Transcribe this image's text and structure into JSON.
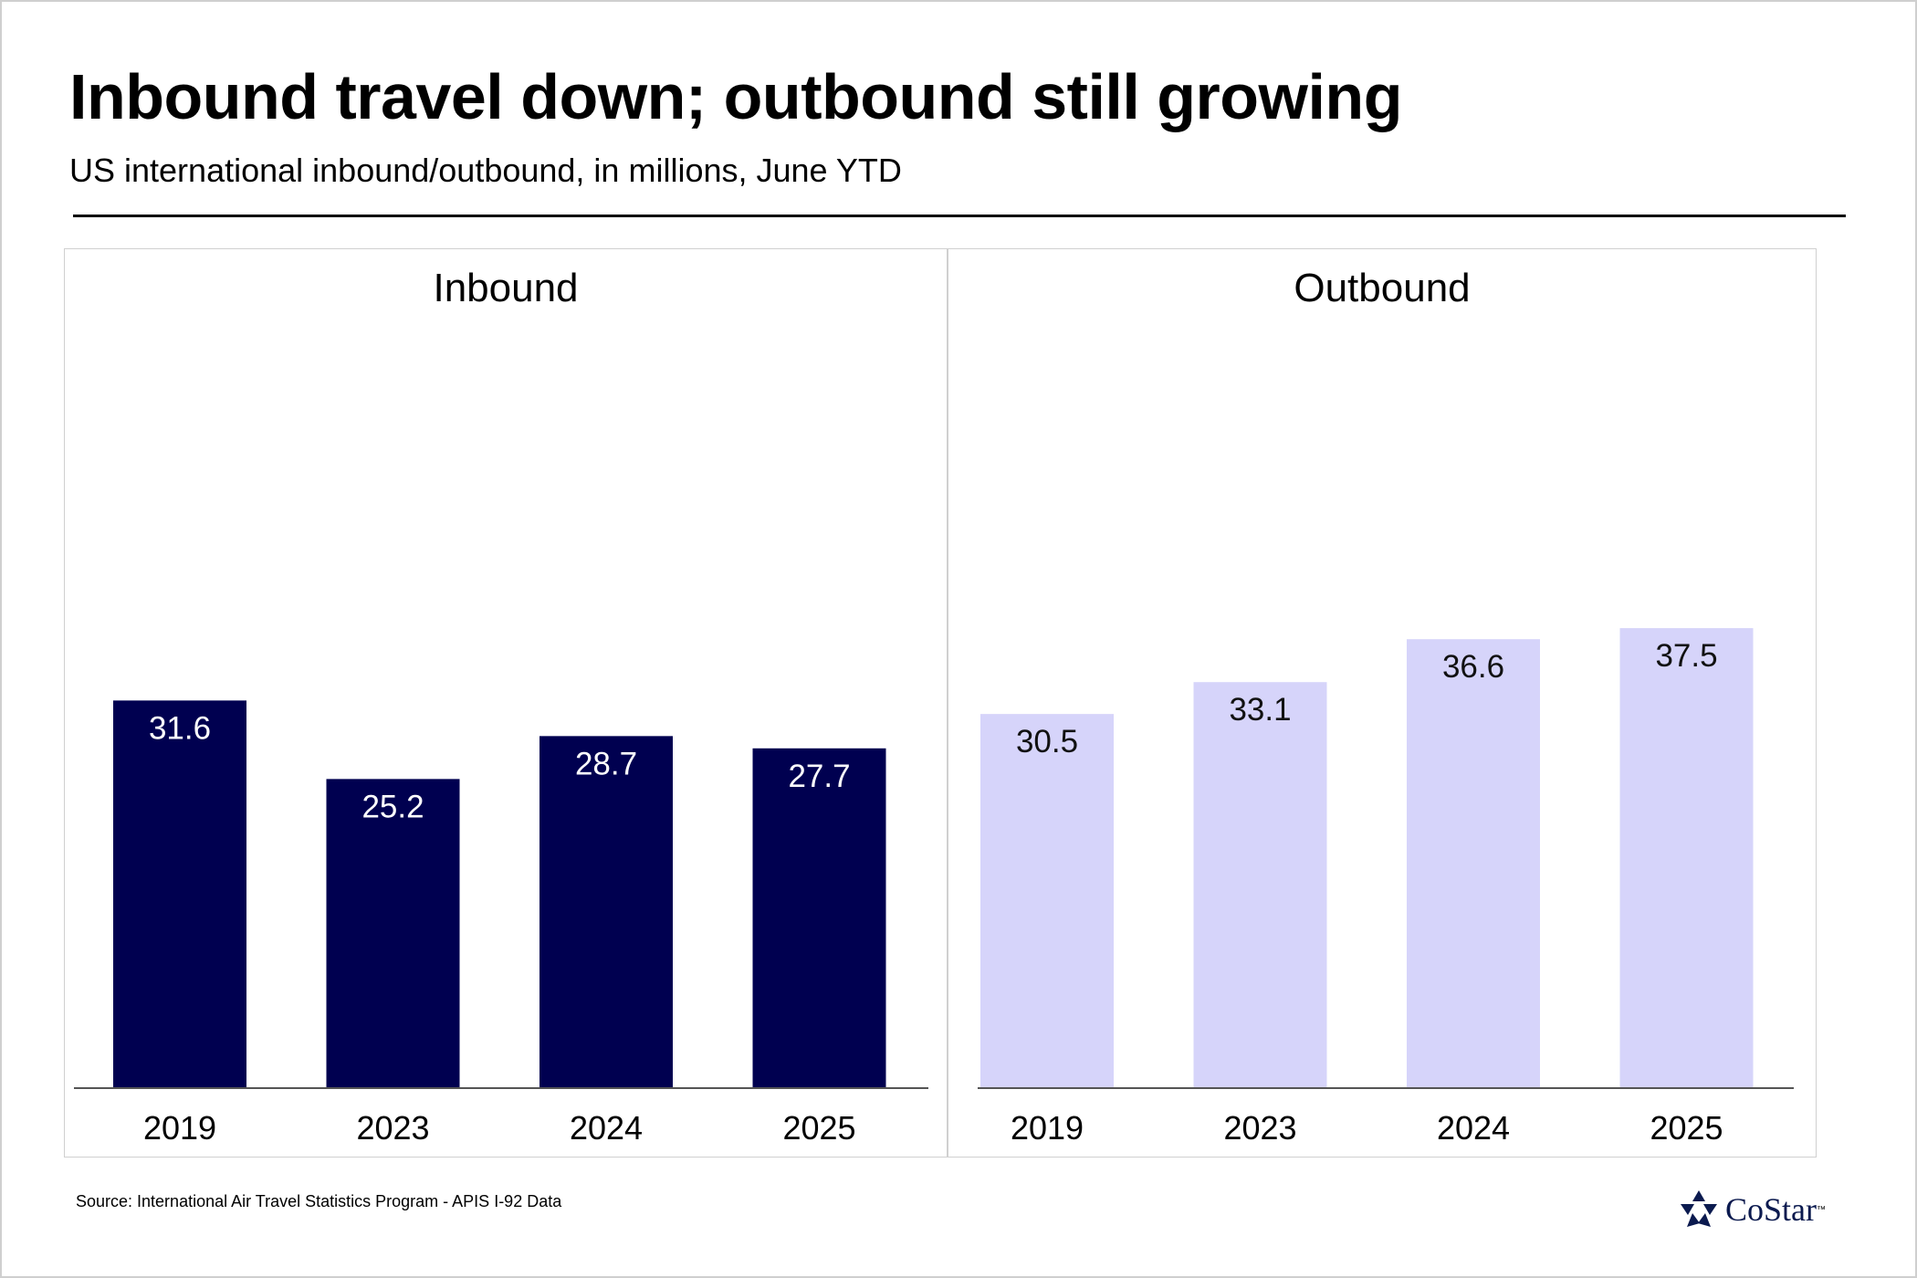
{
  "title": "Inbound travel down; outbound still growing",
  "subtitle": "US international inbound/outbound, in millions, June YTD",
  "source": "Source: International Air Travel Statistics Program - APIS I-92 Data",
  "logo": {
    "text": "CoStar",
    "tm": "™"
  },
  "colors": {
    "inbound": "#000050",
    "outbound": "#d6d4fa",
    "label_dark": "#ffffff",
    "label_light": "#111111"
  },
  "chart_data": [
    {
      "type": "bar",
      "title": "Inbound",
      "categories": [
        "2019",
        "2023",
        "2024",
        "2025"
      ],
      "values": [
        31.6,
        25.2,
        28.7,
        27.7
      ],
      "ylim": [
        0,
        48
      ],
      "data_labels": [
        "31.6",
        "25.2",
        "28.7",
        "27.7"
      ]
    },
    {
      "type": "bar",
      "title": "Outbound",
      "categories": [
        "2019",
        "2023",
        "2024",
        "2025"
      ],
      "values": [
        30.5,
        33.1,
        36.6,
        37.5
      ],
      "ylim": [
        0,
        48
      ],
      "data_labels": [
        "30.5",
        "33.1",
        "36.6",
        "37.5"
      ]
    }
  ]
}
